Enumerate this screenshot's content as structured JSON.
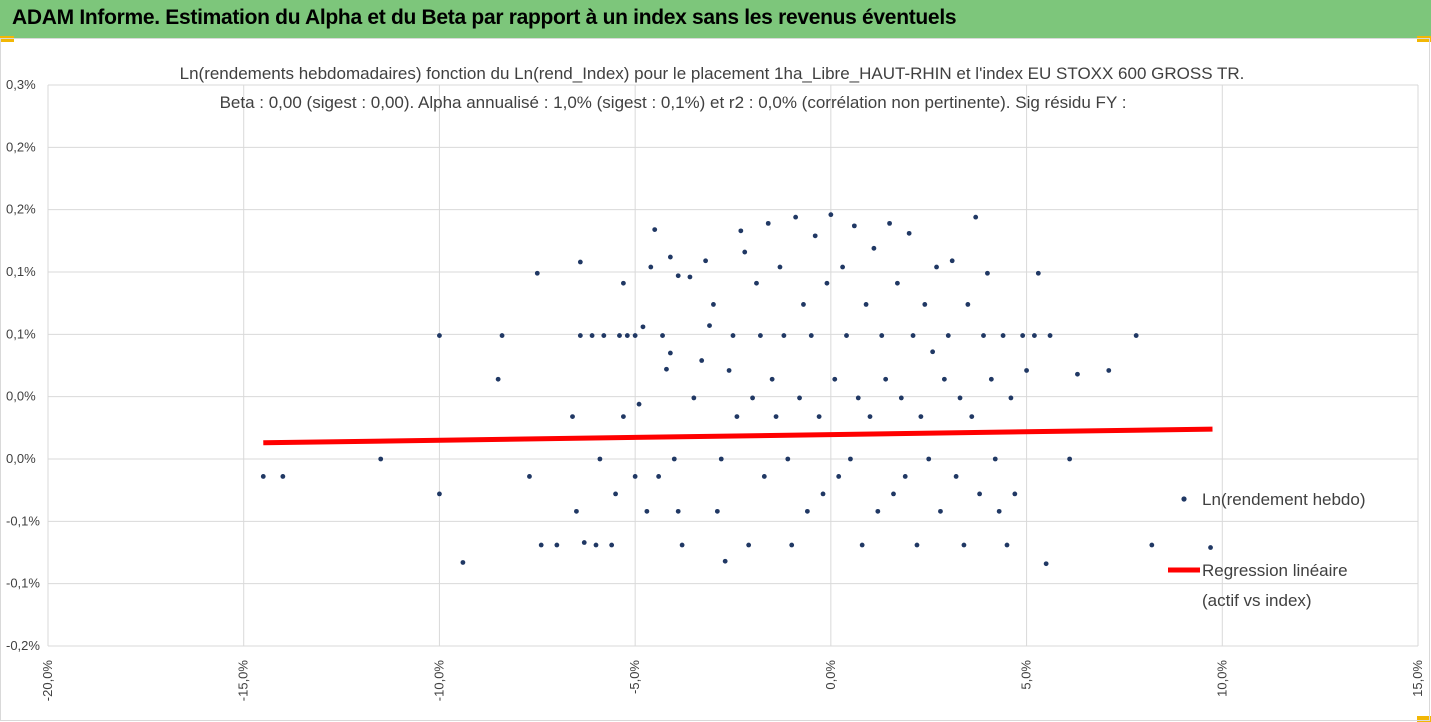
{
  "header": {
    "title": "ADAM Informe. Estimation du Alpha et du Beta par rapport à un index sans les revenus éventuels",
    "background": "#7dc67b",
    "accent": "#f2b705"
  },
  "chart_data": {
    "type": "scatter",
    "title": "Ln(rendements hebdomadaires) fonction du Ln(rend_Index) pour le placement 1ha_Libre_HAUT-RHIN et l'index EU STOXX 600 GROSS TR.",
    "subtitle": "Beta : 0,00 (sigest : 0,00). Alpha annualisé : 1,0% (sigest : 0,1%) et r2 : 0,0% (corrélation non pertinente). Sig résidu FY :",
    "xlabel": "",
    "ylabel": "",
    "xlim": [
      -0.2,
      0.15
    ],
    "ylim": [
      -0.0015,
      0.003
    ],
    "x_ticks": [
      -0.2,
      -0.15,
      -0.1,
      -0.05,
      0.0,
      0.05,
      0.1,
      0.15
    ],
    "x_tick_labels": [
      "-20,0%",
      "-15,0%",
      "-10,0%",
      "-5,0%",
      "0,0%",
      "5,0%",
      "10,0%",
      "15,0%"
    ],
    "y_ticks": [
      0.003,
      0.0025,
      0.002,
      0.0015,
      0.001,
      0.0005,
      0.0,
      -0.0005,
      -0.001,
      -0.0015
    ],
    "y_tick_labels": [
      "0,3%",
      "0,2%",
      "0,2%",
      "0,1%",
      "0,1%",
      "0,0%",
      "0,0%",
      "-0,1%",
      "-0,1%",
      "-0,2%"
    ],
    "grid": true,
    "legend_position": "right",
    "series": [
      {
        "name": "Ln(rendement hebdo)",
        "kind": "scatter",
        "color": "#203864",
        "points": [
          [
            -0.145,
            -0.00014
          ],
          [
            -0.14,
            -0.00014
          ],
          [
            -0.115,
            0.0
          ],
          [
            -0.1,
            0.00099
          ],
          [
            -0.1,
            -0.00028
          ],
          [
            -0.094,
            -0.00083
          ],
          [
            -0.084,
            0.00099
          ],
          [
            -0.085,
            0.00064
          ],
          [
            -0.075,
            0.00149
          ],
          [
            -0.077,
            -0.00014
          ],
          [
            -0.074,
            -0.00069
          ],
          [
            -0.07,
            -0.00069
          ],
          [
            -0.066,
            0.00034
          ],
          [
            -0.065,
            -0.00042
          ],
          [
            -0.064,
            0.00158
          ],
          [
            -0.064,
            0.00099
          ],
          [
            -0.061,
            0.00099
          ],
          [
            -0.063,
            -0.00067
          ],
          [
            -0.06,
            -0.00069
          ],
          [
            -0.059,
            0.0
          ],
          [
            -0.058,
            0.00099
          ],
          [
            -0.056,
            -0.00069
          ],
          [
            -0.055,
            -0.00028
          ],
          [
            -0.054,
            0.00099
          ],
          [
            -0.053,
            0.00034
          ],
          [
            -0.053,
            0.00141
          ],
          [
            -0.052,
            0.00099
          ],
          [
            -0.05,
            0.00099
          ],
          [
            -0.049,
            0.00044
          ],
          [
            -0.05,
            -0.00014
          ],
          [
            -0.048,
            0.00106
          ],
          [
            -0.047,
            -0.00042
          ],
          [
            -0.045,
            0.00184
          ],
          [
            -0.046,
            0.00154
          ],
          [
            -0.044,
            -0.00014
          ],
          [
            -0.043,
            0.00099
          ],
          [
            -0.042,
            0.00072
          ],
          [
            -0.04,
            0.0
          ],
          [
            -0.041,
            0.00162
          ],
          [
            -0.041,
            0.00085
          ],
          [
            -0.039,
            -0.00042
          ],
          [
            -0.038,
            -0.00069
          ],
          [
            -0.039,
            0.00147
          ],
          [
            -0.036,
            0.00146
          ],
          [
            -0.035,
            0.00049
          ],
          [
            -0.033,
            0.00079
          ],
          [
            -0.032,
            0.00159
          ],
          [
            -0.031,
            0.00107
          ],
          [
            -0.03,
            0.00124
          ],
          [
            -0.029,
            -0.00042
          ],
          [
            -0.028,
            0.0
          ],
          [
            -0.027,
            -0.00082
          ],
          [
            -0.026,
            0.00071
          ],
          [
            -0.025,
            0.00099
          ],
          [
            -0.024,
            0.00034
          ],
          [
            -0.023,
            0.00183
          ],
          [
            -0.022,
            0.00166
          ],
          [
            -0.021,
            -0.00069
          ],
          [
            -0.02,
            0.00049
          ],
          [
            -0.019,
            0.00141
          ],
          [
            -0.018,
            0.00099
          ],
          [
            -0.017,
            -0.00014
          ],
          [
            -0.016,
            0.00189
          ],
          [
            -0.015,
            0.00064
          ],
          [
            -0.014,
            0.00034
          ],
          [
            -0.013,
            0.00154
          ],
          [
            -0.012,
            0.00099
          ],
          [
            -0.011,
            0.0
          ],
          [
            -0.01,
            -0.00069
          ],
          [
            -0.009,
            0.00194
          ],
          [
            -0.008,
            0.00049
          ],
          [
            -0.007,
            0.00124
          ],
          [
            -0.006,
            -0.00042
          ],
          [
            -0.005,
            0.00099
          ],
          [
            -0.004,
            0.00179
          ],
          [
            -0.003,
            0.00034
          ],
          [
            -0.002,
            -0.00028
          ],
          [
            -0.001,
            0.00141
          ],
          [
            0.0,
            0.00196
          ],
          [
            0.001,
            0.00064
          ],
          [
            0.002,
            -0.00014
          ],
          [
            0.003,
            0.00154
          ],
          [
            0.004,
            0.00099
          ],
          [
            0.005,
            0.0
          ],
          [
            0.006,
            0.00187
          ],
          [
            0.007,
            0.00049
          ],
          [
            0.008,
            -0.00069
          ],
          [
            0.009,
            0.00124
          ],
          [
            0.01,
            0.00034
          ],
          [
            0.011,
            0.00169
          ],
          [
            0.012,
            -0.00042
          ],
          [
            0.013,
            0.00099
          ],
          [
            0.014,
            0.00064
          ],
          [
            0.015,
            0.00189
          ],
          [
            0.016,
            -0.00028
          ],
          [
            0.017,
            0.00141
          ],
          [
            0.018,
            0.00049
          ],
          [
            0.019,
            -0.00014
          ],
          [
            0.02,
            0.00181
          ],
          [
            0.021,
            0.00099
          ],
          [
            0.022,
            -0.00069
          ],
          [
            0.023,
            0.00034
          ],
          [
            0.024,
            0.00124
          ],
          [
            0.025,
            0.0
          ],
          [
            0.026,
            0.00086
          ],
          [
            0.027,
            0.00154
          ],
          [
            0.028,
            -0.00042
          ],
          [
            0.029,
            0.00064
          ],
          [
            0.03,
            0.00099
          ],
          [
            0.031,
            0.00159
          ],
          [
            0.032,
            -0.00014
          ],
          [
            0.033,
            0.00049
          ],
          [
            0.034,
            -0.00069
          ],
          [
            0.035,
            0.00124
          ],
          [
            0.036,
            0.00034
          ],
          [
            0.037,
            0.00194
          ],
          [
            0.038,
            -0.00028
          ],
          [
            0.039,
            0.00099
          ],
          [
            0.04,
            0.00149
          ],
          [
            0.041,
            0.00064
          ],
          [
            0.042,
            0.0
          ],
          [
            0.043,
            -0.00042
          ],
          [
            0.044,
            0.00099
          ],
          [
            0.045,
            -0.00069
          ],
          [
            0.046,
            0.00049
          ],
          [
            0.047,
            -0.00028
          ],
          [
            0.049,
            0.00099
          ],
          [
            0.05,
            0.00071
          ],
          [
            0.052,
            0.00099
          ],
          [
            0.053,
            0.00149
          ],
          [
            0.055,
            -0.00084
          ],
          [
            0.056,
            0.00099
          ],
          [
            0.061,
            0.0
          ],
          [
            0.063,
            0.00068
          ],
          [
            0.071,
            0.00071
          ],
          [
            0.078,
            0.00099
          ],
          [
            0.082,
            -0.00069
          ],
          [
            0.097,
            -0.00071
          ]
        ]
      },
      {
        "name": "Regression linéaire (actif vs index)",
        "kind": "line",
        "color": "#ff0000",
        "x": [
          -0.145,
          0.0975
        ],
        "y": [
          0.00013,
          0.00024
        ]
      }
    ],
    "legend": [
      {
        "label": "Ln(rendement hebdo)",
        "marker": "dot",
        "color": "#203864"
      },
      {
        "label_line1": "Regression linéaire",
        "label_line2": "(actif vs index)",
        "marker": "line",
        "color": "#ff0000"
      }
    ]
  }
}
